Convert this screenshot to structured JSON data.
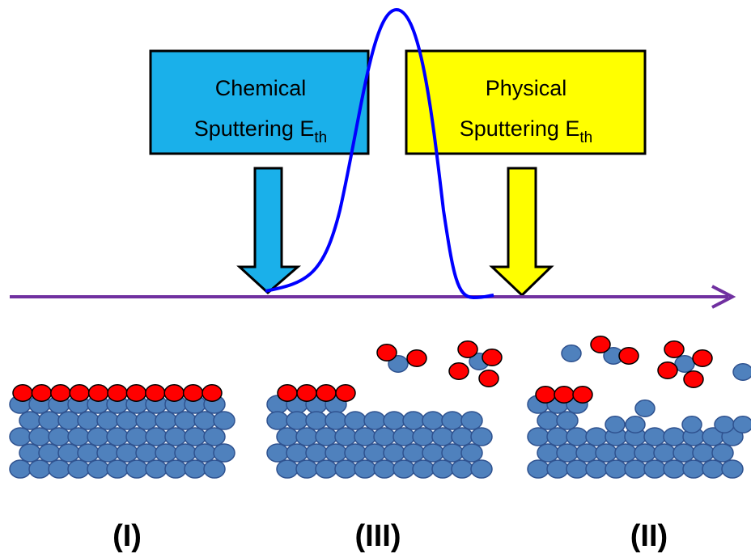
{
  "boxes": [
    {
      "line1": "Chemical",
      "line2": "Sputtering E",
      "sub": "th"
    },
    {
      "line1": "Physical",
      "line2": "Sputtering E",
      "sub": "th"
    }
  ],
  "panels": [
    "(I)",
    "(III)",
    "(II)"
  ]
}
